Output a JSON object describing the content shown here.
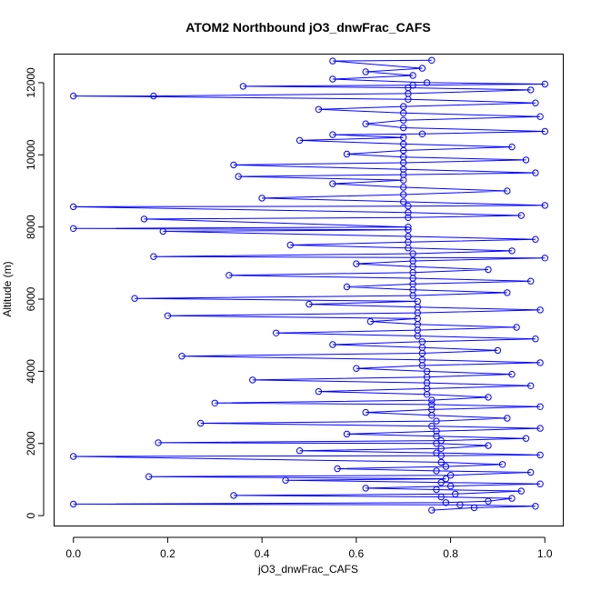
{
  "chart_data": {
    "type": "scatter",
    "title": "ATOM2 Northbound jO3_dnwFrac_CAFS",
    "xlabel": "jO3_dnwFrac_CAFS",
    "ylabel": "Altitude (m)",
    "xlim": [
      -0.04,
      1.04
    ],
    "ylim": [
      -300,
      12780
    ],
    "x_ticks": [
      0.0,
      0.2,
      0.4,
      0.6,
      0.8,
      1.0
    ],
    "x_tick_labels": [
      "0.0",
      "0.2",
      "0.4",
      "0.6",
      "0.8",
      "1.0"
    ],
    "y_ticks": [
      0,
      2000,
      4000,
      6000,
      8000,
      10000,
      12000
    ],
    "y_tick_labels": [
      "0",
      "2000",
      "4000",
      "6000",
      "8000",
      "10000",
      "12000"
    ],
    "grid": false,
    "legend": "none",
    "series_color": "#0000ff",
    "series": [
      {
        "marker": "open-circle",
        "connected": true,
        "points": [
          [
            0.76,
            150
          ],
          [
            0.85,
            220
          ],
          [
            0.98,
            260
          ],
          [
            0.82,
            300
          ],
          [
            0.0,
            320
          ],
          [
            0.79,
            360
          ],
          [
            0.88,
            400
          ],
          [
            0.93,
            480
          ],
          [
            0.78,
            520
          ],
          [
            0.34,
            560
          ],
          [
            0.81,
            600
          ],
          [
            0.95,
            680
          ],
          [
            0.77,
            720
          ],
          [
            0.62,
            760
          ],
          [
            0.8,
            820
          ],
          [
            0.99,
            880
          ],
          [
            0.78,
            920
          ],
          [
            0.45,
            980
          ],
          [
            0.79,
            1020
          ],
          [
            0.16,
            1080
          ],
          [
            0.8,
            1120
          ],
          [
            0.97,
            1200
          ],
          [
            0.77,
            1240
          ],
          [
            0.56,
            1300
          ],
          [
            0.79,
            1360
          ],
          [
            0.91,
            1420
          ],
          [
            0.78,
            1480
          ],
          [
            0.0,
            1640
          ],
          [
            0.78,
            1660
          ],
          [
            0.99,
            1680
          ],
          [
            0.77,
            1740
          ],
          [
            0.48,
            1800
          ],
          [
            0.78,
            1860
          ],
          [
            0.88,
            1940
          ],
          [
            0.77,
            2000
          ],
          [
            0.18,
            2020
          ],
          [
            0.78,
            2080
          ],
          [
            0.96,
            2140
          ],
          [
            0.77,
            2200
          ],
          [
            0.58,
            2260
          ],
          [
            0.77,
            2340
          ],
          [
            0.99,
            2420
          ],
          [
            0.76,
            2480
          ],
          [
            0.27,
            2560
          ],
          [
            0.77,
            2620
          ],
          [
            0.92,
            2700
          ],
          [
            0.76,
            2780
          ],
          [
            0.62,
            2860
          ],
          [
            0.76,
            2940
          ],
          [
            0.99,
            3020
          ],
          [
            0.76,
            3080
          ],
          [
            0.3,
            3120
          ],
          [
            0.76,
            3200
          ],
          [
            0.88,
            3280
          ],
          [
            0.75,
            3360
          ],
          [
            0.52,
            3440
          ],
          [
            0.75,
            3520
          ],
          [
            0.97,
            3600
          ],
          [
            0.75,
            3680
          ],
          [
            0.38,
            3760
          ],
          [
            0.75,
            3840
          ],
          [
            0.93,
            3920
          ],
          [
            0.75,
            4000
          ],
          [
            0.6,
            4080
          ],
          [
            0.74,
            4160
          ],
          [
            0.99,
            4240
          ],
          [
            0.74,
            4320
          ],
          [
            0.23,
            4420
          ],
          [
            0.74,
            4500
          ],
          [
            0.9,
            4580
          ],
          [
            0.74,
            4660
          ],
          [
            0.55,
            4740
          ],
          [
            0.74,
            4820
          ],
          [
            0.98,
            4900
          ],
          [
            0.73,
            4980
          ],
          [
            0.43,
            5060
          ],
          [
            0.73,
            5140
          ],
          [
            0.94,
            5220
          ],
          [
            0.73,
            5300
          ],
          [
            0.63,
            5380
          ],
          [
            0.73,
            5460
          ],
          [
            0.2,
            5540
          ],
          [
            0.73,
            5620
          ],
          [
            0.99,
            5700
          ],
          [
            0.73,
            5780
          ],
          [
            0.5,
            5860
          ],
          [
            0.73,
            5940
          ],
          [
            0.13,
            6020
          ],
          [
            0.72,
            6100
          ],
          [
            0.92,
            6180
          ],
          [
            0.72,
            6260
          ],
          [
            0.58,
            6340
          ],
          [
            0.72,
            6420
          ],
          [
            0.97,
            6500
          ],
          [
            0.72,
            6580
          ],
          [
            0.33,
            6660
          ],
          [
            0.72,
            6740
          ],
          [
            0.88,
            6820
          ],
          [
            0.72,
            6900
          ],
          [
            0.6,
            6980
          ],
          [
            0.72,
            7060
          ],
          [
            1.0,
            7140
          ],
          [
            0.17,
            7180
          ],
          [
            0.72,
            7260
          ],
          [
            0.93,
            7340
          ],
          [
            0.71,
            7420
          ],
          [
            0.46,
            7500
          ],
          [
            0.71,
            7580
          ],
          [
            0.98,
            7660
          ],
          [
            0.71,
            7740
          ],
          [
            0.19,
            7880
          ],
          [
            0.71,
            7920
          ],
          [
            0.0,
            7960
          ],
          [
            0.71,
            8000
          ],
          [
            0.15,
            8220
          ],
          [
            0.71,
            8260
          ],
          [
            0.95,
            8320
          ],
          [
            0.71,
            8400
          ],
          [
            0.0,
            8560
          ],
          [
            0.71,
            8580
          ],
          [
            1.0,
            8600
          ],
          [
            0.7,
            8700
          ],
          [
            0.4,
            8800
          ],
          [
            0.7,
            8900
          ],
          [
            0.92,
            9000
          ],
          [
            0.7,
            9100
          ],
          [
            0.55,
            9200
          ],
          [
            0.7,
            9300
          ],
          [
            0.35,
            9400
          ],
          [
            0.7,
            9450
          ],
          [
            0.98,
            9500
          ],
          [
            0.7,
            9600
          ],
          [
            0.34,
            9720
          ],
          [
            0.7,
            9780
          ],
          [
            0.96,
            9860
          ],
          [
            0.7,
            9940
          ],
          [
            0.58,
            10020
          ],
          [
            0.7,
            10120
          ],
          [
            0.93,
            10220
          ],
          [
            0.7,
            10300
          ],
          [
            0.48,
            10400
          ],
          [
            0.7,
            10480
          ],
          [
            0.55,
            10560
          ],
          [
            0.74,
            10580
          ],
          [
            1.0,
            10650
          ],
          [
            0.7,
            10750
          ],
          [
            0.62,
            10860
          ],
          [
            0.7,
            10960
          ],
          [
            0.99,
            11060
          ],
          [
            0.7,
            11160
          ],
          [
            0.52,
            11260
          ],
          [
            0.7,
            11340
          ],
          [
            0.98,
            11440
          ],
          [
            0.71,
            11540
          ],
          [
            0.0,
            11630
          ],
          [
            0.17,
            11630
          ],
          [
            0.71,
            11700
          ],
          [
            0.97,
            11800
          ],
          [
            0.71,
            11860
          ],
          [
            0.36,
            11900
          ],
          [
            0.72,
            11930
          ],
          [
            1.0,
            11960
          ],
          [
            0.75,
            12000
          ],
          [
            0.55,
            12100
          ],
          [
            0.72,
            12200
          ],
          [
            0.62,
            12300
          ],
          [
            0.74,
            12400
          ],
          [
            0.55,
            12600
          ],
          [
            0.76,
            12620
          ]
        ]
      }
    ]
  }
}
